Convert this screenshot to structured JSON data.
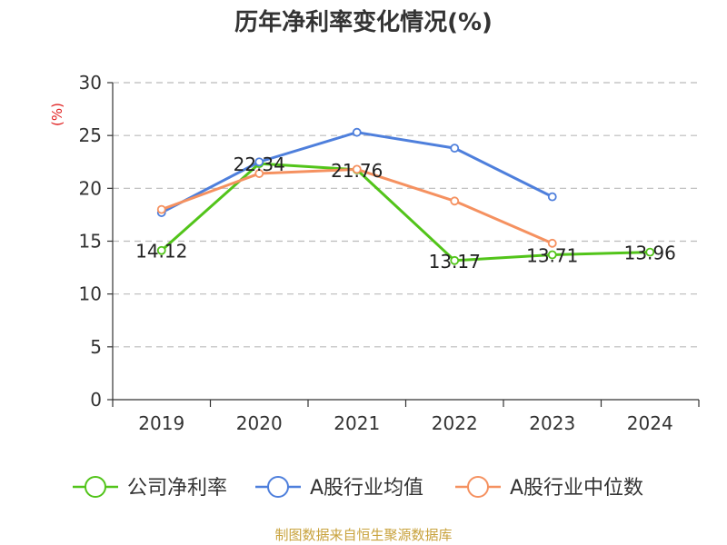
{
  "chart_data": {
    "type": "line",
    "title": "历年净利率变化情况(%)",
    "ylabel": "(%)",
    "xlabel": "",
    "categories": [
      "2019",
      "2020",
      "2021",
      "2022",
      "2023",
      "2024"
    ],
    "ylim": [
      0,
      30
    ],
    "yticks": [
      "0",
      "5",
      "10",
      "15",
      "20",
      "25",
      "30"
    ],
    "grid": true,
    "legend_position": "bottom",
    "series": [
      {
        "name": "公司净利率",
        "color": "#52c41a",
        "values": [
          14.12,
          22.34,
          21.76,
          13.17,
          13.71,
          13.96
        ],
        "labels": [
          "14.12",
          "22.34",
          "21.76",
          "13.17",
          "13.71",
          "13.96"
        ]
      },
      {
        "name": "A股行业均值",
        "color": "#4e7fdc",
        "values": [
          17.7,
          22.5,
          25.3,
          23.8,
          19.2,
          null
        ]
      },
      {
        "name": "A股行业中位数",
        "color": "#f59160",
        "values": [
          18.0,
          21.4,
          21.8,
          18.8,
          14.8,
          null
        ]
      }
    ],
    "source": "制图数据来自恒生聚源数据库",
    "source_color": "#c8a23c",
    "ylabel_color": "#e02020"
  }
}
